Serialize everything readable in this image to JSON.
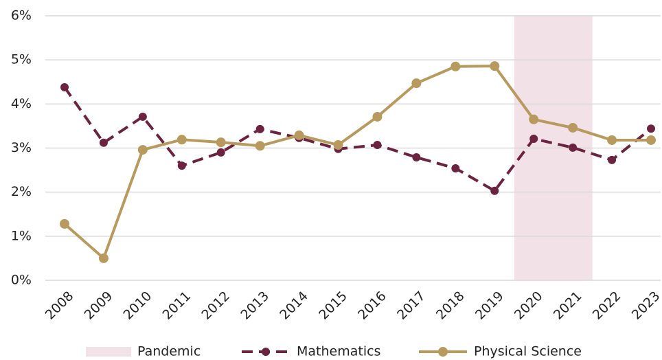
{
  "chart_data": {
    "type": "line",
    "categories": [
      "2008",
      "2009",
      "2010",
      "2011",
      "2012",
      "2013",
      "2014",
      "2015",
      "2016",
      "2017",
      "2018",
      "2019",
      "2020",
      "2021",
      "2022",
      "2023"
    ],
    "series": [
      {
        "name": "Mathematics",
        "color": "#6b2340",
        "dashed": true,
        "values": [
          4.38,
          3.12,
          3.71,
          2.6,
          2.9,
          3.43,
          3.23,
          2.98,
          3.07,
          2.79,
          2.54,
          2.03,
          3.21,
          3.01,
          2.73,
          3.44
        ]
      },
      {
        "name": "Physical Science",
        "color": "#b89a5e",
        "dashed": false,
        "values": [
          1.28,
          0.5,
          2.96,
          3.19,
          3.13,
          3.05,
          3.29,
          3.07,
          3.71,
          4.47,
          4.85,
          4.86,
          3.65,
          3.46,
          3.18,
          3.18
        ]
      }
    ],
    "shaded_region": {
      "name": "Pandemic",
      "start": "2020",
      "end": "2021",
      "color": "#f3e1e8"
    },
    "ylim": [
      0,
      6
    ],
    "yticks": [
      {
        "value": 0,
        "label": "0%"
      },
      {
        "value": 1,
        "label": "1%"
      },
      {
        "value": 2,
        "label": "2%"
      },
      {
        "value": 3,
        "label": "3%"
      },
      {
        "value": 4,
        "label": "4%"
      },
      {
        "value": 5,
        "label": "5%"
      },
      {
        "value": 6,
        "label": "6%"
      }
    ],
    "grid": true,
    "legend": "bottom"
  }
}
